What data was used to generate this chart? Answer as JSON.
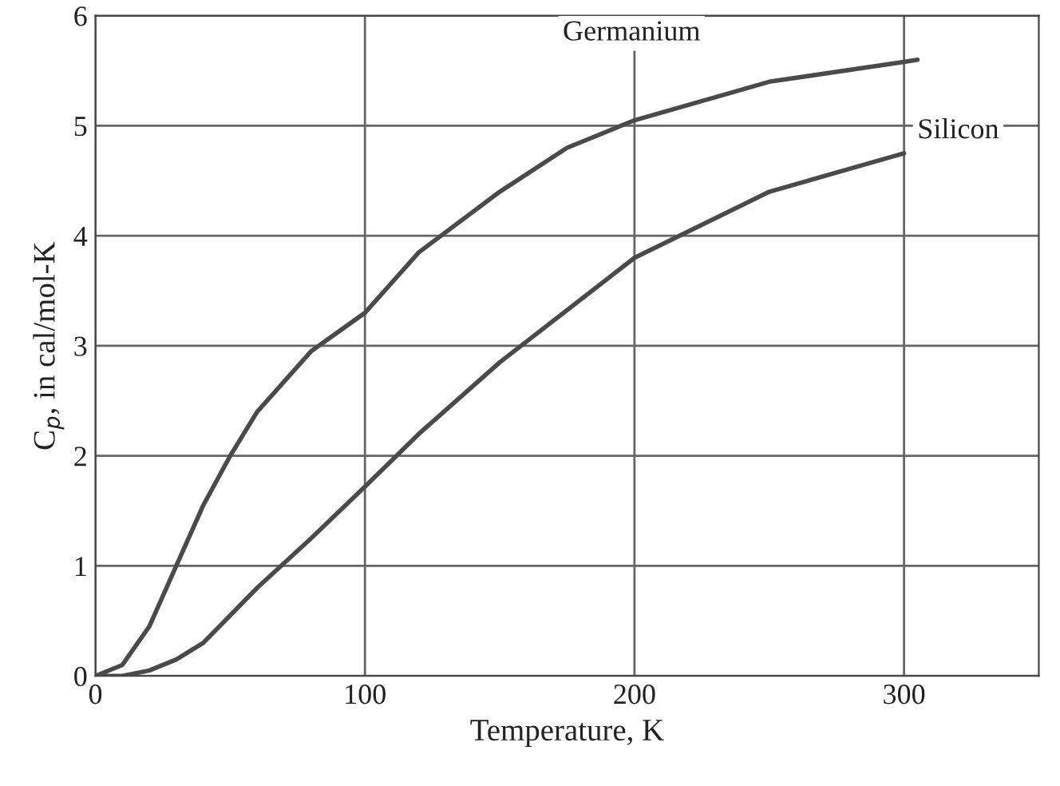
{
  "chart_data": {
    "type": "line",
    "xlabel": "Temperature, K",
    "ylabel": "C$_{p}$, in cal/mol-K",
    "xlim": [
      0,
      350
    ],
    "xticks": [
      0,
      100,
      200,
      300
    ],
    "ylim": [
      0,
      6
    ],
    "yticks": [
      0,
      1,
      2,
      3,
      4,
      5,
      6
    ],
    "grid": true,
    "marker": "none",
    "line_style": "solid",
    "series": [
      {
        "name": "Germanium",
        "color": "#4a4a4a",
        "x": [
          0,
          10,
          20,
          30,
          40,
          50,
          60,
          80,
          100,
          120,
          150,
          175,
          200,
          250,
          300,
          305
        ],
        "values": [
          0,
          0.1,
          0.45,
          1.0,
          1.55,
          2.0,
          2.4,
          2.95,
          3.3,
          3.85,
          4.4,
          4.8,
          5.05,
          5.4,
          5.58,
          5.6
        ]
      },
      {
        "name": "Silicon",
        "color": "#4a4a4a",
        "x": [
          0,
          10,
          20,
          30,
          40,
          50,
          60,
          80,
          100,
          120,
          150,
          200,
          250,
          300
        ],
        "values": [
          0,
          0.0,
          0.05,
          0.15,
          0.3,
          0.55,
          0.8,
          1.25,
          1.72,
          2.2,
          2.85,
          3.8,
          4.4,
          4.75
        ]
      }
    ]
  }
}
